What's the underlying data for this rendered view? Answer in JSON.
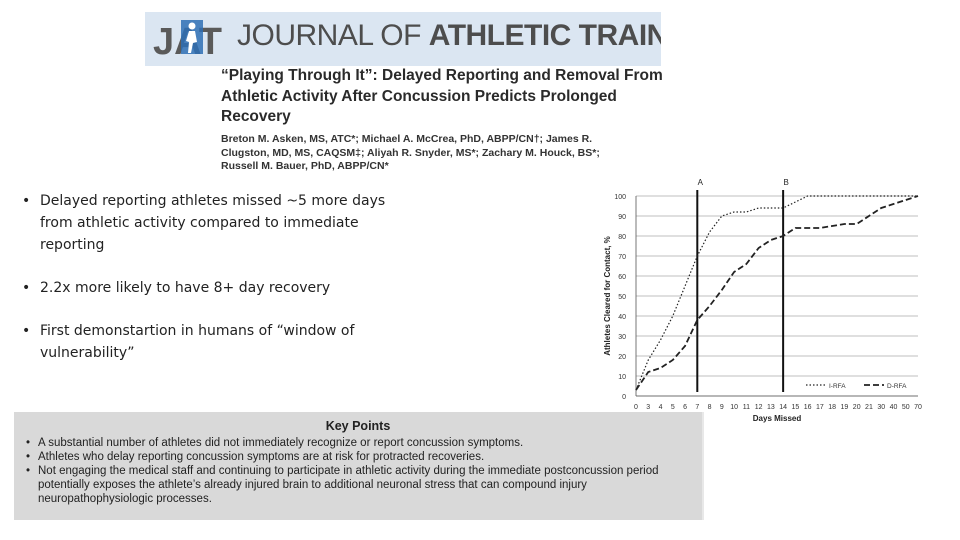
{
  "banner": {
    "logo_text": "JAT",
    "journal_name_light": "JOURNAL OF ",
    "journal_name_bold": "ATHLETIC TRAINING"
  },
  "article": {
    "title": "“Playing Through It”: Delayed Reporting and Removal From Athletic Activity After Concussion Predicts Prolonged Recovery",
    "authors": "Breton M. Asken, MS, ATC*; Michael A. McCrea, PhD, ABPP/CN†; James R. Clugston, MD, MS, CAQSM‡; Aliyah R. Snyder, MS*; Zachary M. Houck, BS*; Russell M. Bauer, PhD, ABPP/CN*"
  },
  "bullets": {
    "b1": "Delayed reporting athletes missed ~5 more days from athletic activity compared to immediate reporting",
    "b2": "2.2x more likely to have 8+ day recovery",
    "b3": "First demonstartion in humans  of “window of vulnerability”"
  },
  "key_points": {
    "heading": "Key Points",
    "items": [
      "A substantial number of athletes did not immediately recognize or report concussion symptoms.",
      "Athletes who delay reporting concussion symptoms are at risk for protracted recoveries.",
      "Not engaging the medical staff and continuing to participate in athletic activity during the immediate postconcussion period potentially exposes the athlete’s already injured brain to additional neuronal stress that can compound injury neuropathophysiologic processes."
    ]
  },
  "chart_data": {
    "type": "line",
    "xlabel": "Days Missed",
    "ylabel": "Athletes Cleared for Contact, %",
    "categories": [
      "0",
      "3",
      "4",
      "5",
      "6",
      "7",
      "8",
      "9",
      "10",
      "11",
      "12",
      "13",
      "14",
      "15",
      "16",
      "17",
      "18",
      "19",
      "20",
      "21",
      "30",
      "40",
      "50",
      "70"
    ],
    "yticks": [
      0,
      10,
      20,
      30,
      40,
      50,
      60,
      70,
      80,
      90,
      100
    ],
    "ylim": [
      0,
      100
    ],
    "grid": true,
    "legend_position": "bottom-right",
    "series": [
      {
        "name": "I-RFA",
        "style": "dotted",
        "values": [
          3,
          18,
          28,
          40,
          55,
          70,
          82,
          90,
          92,
          92,
          94,
          94,
          94,
          97,
          100,
          100,
          100,
          100,
          100,
          100,
          100,
          100,
          100,
          100
        ]
      },
      {
        "name": "D-RFA",
        "style": "dashed",
        "values": [
          3,
          12,
          14,
          18,
          25,
          38,
          45,
          53,
          62,
          66,
          74,
          78,
          80,
          84,
          84,
          84,
          85,
          86,
          86,
          90,
          94,
          96,
          98,
          100
        ]
      }
    ],
    "markers": [
      {
        "label": "A",
        "x_index": 5
      },
      {
        "label": "B",
        "x_index": 12
      }
    ],
    "colors": {
      "line": "#222222",
      "grid": "#aaaaaa"
    }
  }
}
